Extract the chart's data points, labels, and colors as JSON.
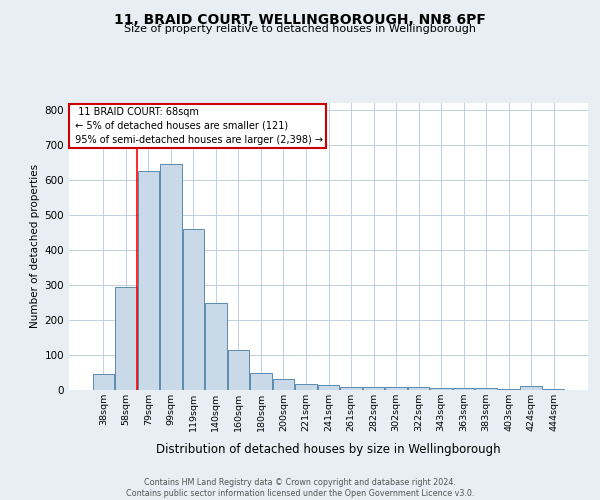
{
  "title1": "11, BRAID COURT, WELLINGBOROUGH, NN8 6PF",
  "title2": "Size of property relative to detached houses in Wellingborough",
  "xlabel": "Distribution of detached houses by size in Wellingborough",
  "ylabel": "Number of detached properties",
  "categories": [
    "38sqm",
    "58sqm",
    "79sqm",
    "99sqm",
    "119sqm",
    "140sqm",
    "160sqm",
    "180sqm",
    "200sqm",
    "221sqm",
    "241sqm",
    "261sqm",
    "282sqm",
    "302sqm",
    "322sqm",
    "343sqm",
    "363sqm",
    "383sqm",
    "403sqm",
    "424sqm",
    "444sqm"
  ],
  "values": [
    47,
    293,
    625,
    645,
    460,
    248,
    113,
    49,
    30,
    18,
    15,
    8,
    8,
    8,
    8,
    6,
    5,
    5,
    2,
    10,
    2
  ],
  "bar_color": "#c9d9e8",
  "bar_edge_color": "#5a8ab0",
  "red_line_x": 1.5,
  "annotation_text": "  11 BRAID COURT: 68sqm  \n ← 5% of detached houses are smaller (121)\n 95% of semi-detached houses are larger (2,398) →",
  "annotation_box_color": "#ffffff",
  "annotation_box_edge": "#cc0000",
  "ylim": [
    0,
    820
  ],
  "yticks": [
    0,
    100,
    200,
    300,
    400,
    500,
    600,
    700,
    800
  ],
  "footnote": "Contains HM Land Registry data © Crown copyright and database right 2024.\nContains public sector information licensed under the Open Government Licence v3.0.",
  "background_color": "#e8eef4",
  "plot_bg_color": "#ffffff",
  "grid_color": "#c0d0e0"
}
